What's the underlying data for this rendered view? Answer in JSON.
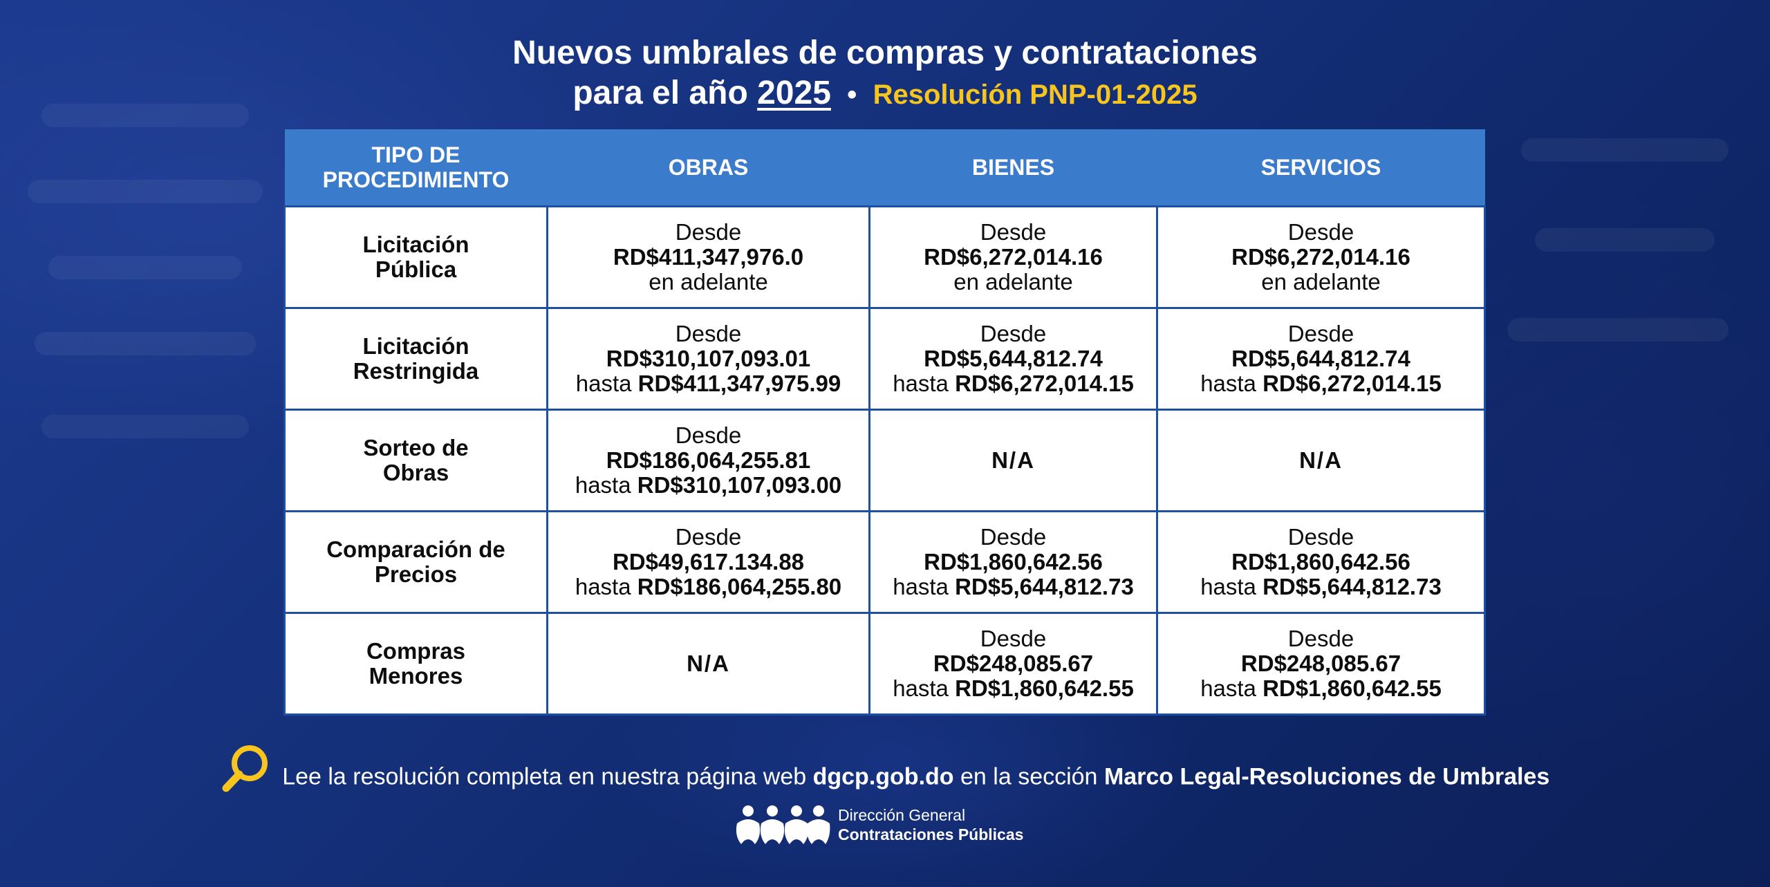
{
  "title": {
    "line1": "Nuevos umbrales de compras y contrataciones",
    "line2_prefix": "para el año",
    "year": "2025",
    "separator": "•",
    "resolution": "Resolución PNP-01-2025"
  },
  "table": {
    "headers": [
      "TIPO DE PROCEDIMIENTO",
      "OBRAS",
      "BIENES",
      "SERVICIOS"
    ],
    "rows": [
      {
        "proc": "Licitación Pública",
        "obras": {
          "desde": "Desde",
          "amount": "RD$411,347,976.0",
          "tail": "en adelante"
        },
        "bienes": {
          "desde": "Desde",
          "amount": "RD$6,272,014.16",
          "tail": "en adelante"
        },
        "servicios": {
          "desde": "Desde",
          "amount": "RD$6,272,014.16",
          "tail": "en adelante"
        }
      },
      {
        "proc": "Licitación Restringida",
        "obras": {
          "desde": "Desde",
          "amount": "RD$310,107,093.01",
          "hasta": "hasta",
          "hasta_amount": "RD$411,347,975.99"
        },
        "bienes": {
          "desde": "Desde",
          "amount": "RD$5,644,812.74",
          "hasta": "hasta",
          "hasta_amount": "RD$6,272,014.15"
        },
        "servicios": {
          "desde": "Desde",
          "amount": "RD$5,644,812.74",
          "hasta": "hasta",
          "hasta_amount": "RD$6,272,014.15"
        }
      },
      {
        "proc": "Sorteo de Obras",
        "obras": {
          "desde": "Desde",
          "amount": "RD$186,064,255.81",
          "hasta": "hasta",
          "hasta_amount": "RD$310,107,093.00"
        },
        "bienes": {
          "na": "N/A"
        },
        "servicios": {
          "na": "N/A"
        }
      },
      {
        "proc": "Comparación de Precios",
        "obras": {
          "desde": "Desde",
          "amount": "RD$49,617.134.88",
          "hasta": "hasta",
          "hasta_amount": "RD$186,064,255.80"
        },
        "bienes": {
          "desde": "Desde",
          "amount": "RD$1,860,642.56",
          "hasta": "hasta",
          "hasta_amount": "RD$5,644,812.73"
        },
        "servicios": {
          "desde": "Desde",
          "amount": "RD$1,860,642.56",
          "hasta": "hasta",
          "hasta_amount": "RD$5,644,812.73"
        }
      },
      {
        "proc": "Compras Menores",
        "obras": {
          "na": "N/A"
        },
        "bienes": {
          "desde": "Desde",
          "amount": "RD$248,085.67",
          "hasta": "hasta",
          "hasta_amount": "RD$1,860,642.55"
        },
        "servicios": {
          "desde": "Desde",
          "amount": "RD$248,085.67",
          "hasta": "hasta",
          "hasta_amount": "RD$1,860,642.55"
        }
      }
    ]
  },
  "footer": {
    "text1": "Lee la resolución completa en nuestra página web",
    "site": "dgcp.gob.do",
    "text2": "en la sección",
    "section": "Marco Legal-Resoluciones de Umbrales",
    "icon": "search-icon"
  },
  "logo": {
    "line1": "Dirección General",
    "line2": "Contrataciones Públicas"
  },
  "colors": {
    "header_bg": "#3a7ccb",
    "accent_yellow": "#f7c51e",
    "border": "#1f4fa0"
  }
}
